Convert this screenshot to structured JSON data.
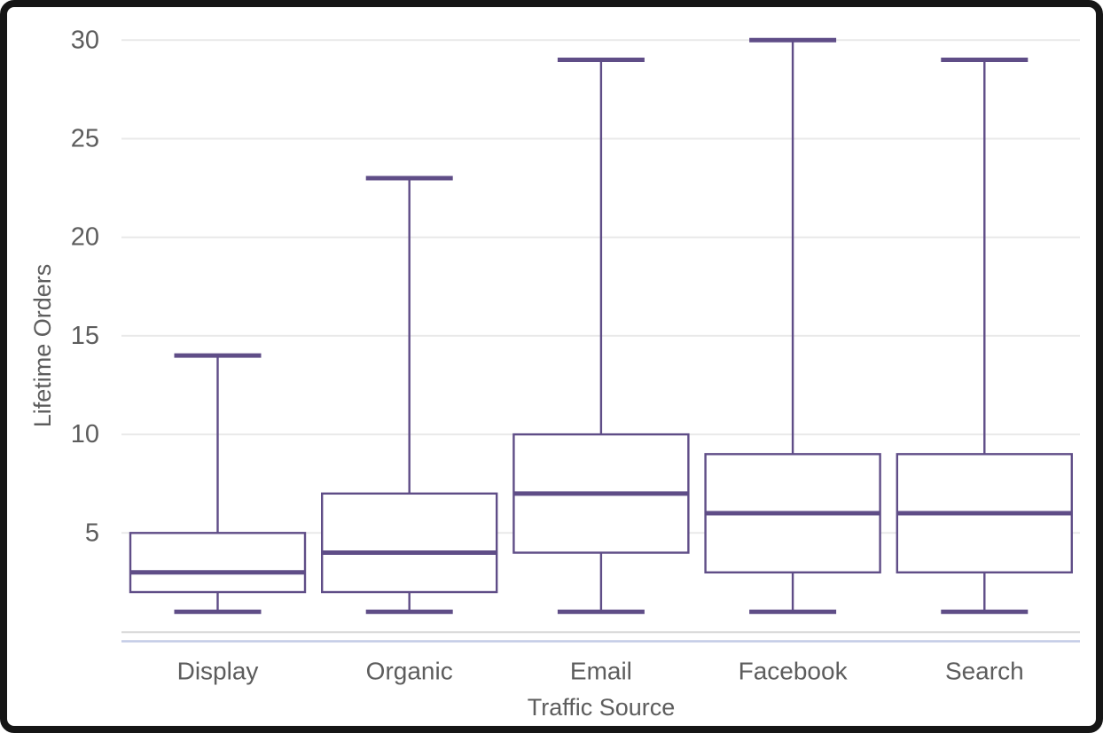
{
  "chart_data": {
    "type": "boxplot",
    "title": "",
    "xlabel": "Traffic Source",
    "ylabel": "Lifetime Orders",
    "categories": [
      "Display",
      "Organic",
      "Email",
      "Facebook",
      "Search"
    ],
    "series": [
      {
        "name": "Display",
        "min": 1,
        "q1": 2,
        "median": 3,
        "q3": 5,
        "max": 14
      },
      {
        "name": "Organic",
        "min": 1,
        "q1": 2,
        "median": 4,
        "q3": 7,
        "max": 23
      },
      {
        "name": "Email",
        "min": 1,
        "q1": 4,
        "median": 7,
        "q3": 10,
        "max": 29
      },
      {
        "name": "Facebook",
        "min": 1,
        "q1": 3,
        "median": 6,
        "q3": 9,
        "max": 30
      },
      {
        "name": "Search",
        "min": 1,
        "q1": 3,
        "median": 6,
        "q3": 9,
        "max": 29
      }
    ],
    "y_ticks": [
      5,
      10,
      15,
      20,
      25,
      30
    ],
    "ylim": [
      0,
      30
    ],
    "grid": true,
    "legend": false,
    "colors": {
      "box_stroke": "#5f4d87",
      "box_fill": "#ffffff",
      "gridline": "#e9e9e9",
      "axis_baseline": "#d8d8d8",
      "axis_accent_line": "#c3cce6",
      "label_text": "#5d5d5d"
    }
  }
}
